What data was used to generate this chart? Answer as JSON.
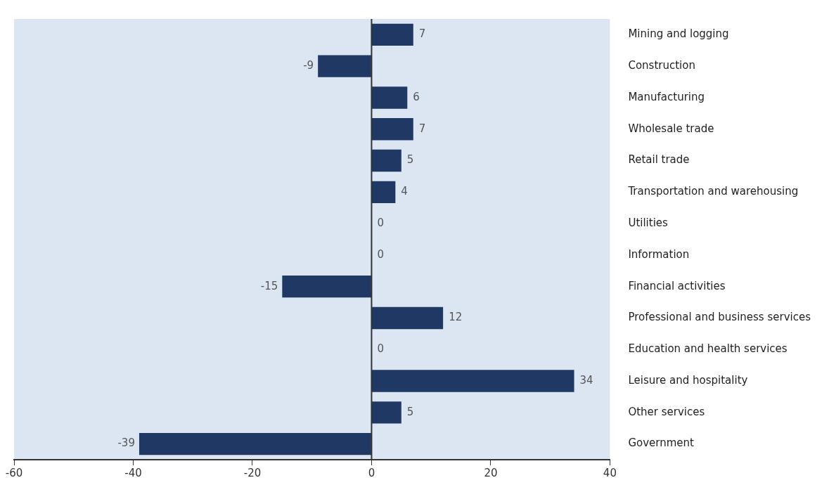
{
  "chart_data": {
    "type": "bar",
    "orientation": "horizontal",
    "categories": [
      "Mining and logging",
      "Construction",
      "Manufacturing",
      "Wholesale trade",
      "Retail trade",
      "Transportation and warehousing",
      "Utilities",
      "Information",
      "Financial activities",
      "Professional and business services",
      "Education and health services",
      "Leisure and hospitality",
      "Other services",
      "Government"
    ],
    "values": [
      7,
      -9,
      6,
      7,
      5,
      4,
      0,
      0,
      -15,
      12,
      0,
      34,
      5,
      -39
    ],
    "color": "#1f3864",
    "xlim": [
      -60,
      40
    ],
    "xticks": [
      -60,
      -40,
      -20,
      0,
      20,
      40
    ],
    "ref_lines": [
      {
        "axis": "x",
        "value": 0,
        "color": "#333333"
      }
    ],
    "data_labels": true,
    "grid": false,
    "legend": false
  }
}
